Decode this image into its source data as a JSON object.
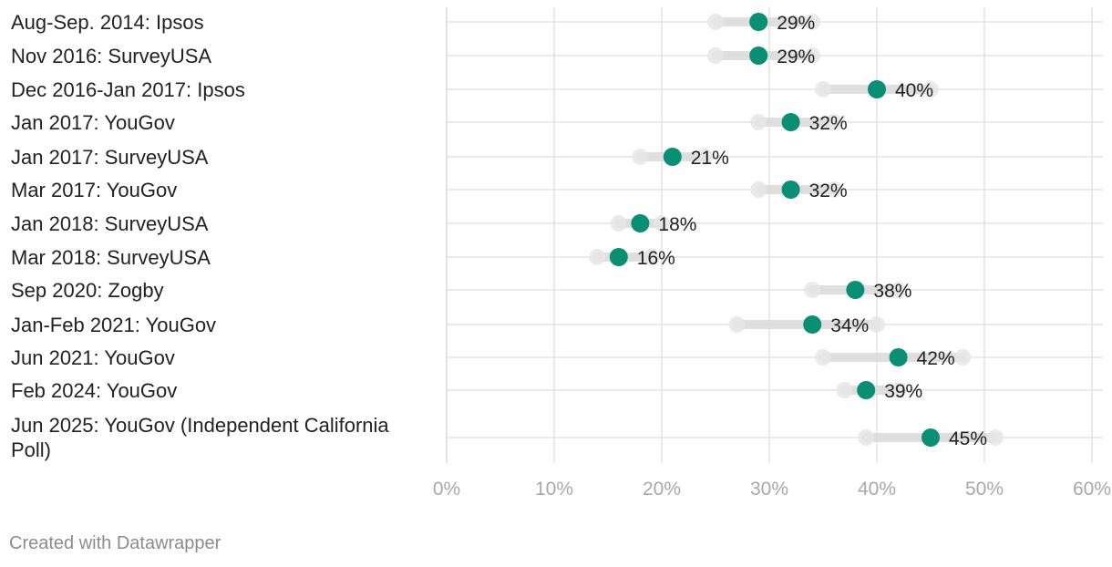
{
  "chart_data": {
    "type": "range-dot",
    "categories": [
      [
        "Aug-Sep. 2014: Ipsos"
      ],
      [
        "Nov 2016: SurveyUSA"
      ],
      [
        "Dec 2016-Jan 2017: Ipsos"
      ],
      [
        "Jan 2017: YouGov"
      ],
      [
        "Jan 2017: SurveyUSA"
      ],
      [
        "Mar 2017: YouGov"
      ],
      [
        "Jan 2018: SurveyUSA"
      ],
      [
        "Mar 2018: SurveyUSA"
      ],
      [
        "Sep 2020: Zogby"
      ],
      [
        "Jan-Feb 2021: YouGov"
      ],
      [
        "Jun 2021: YouGov"
      ],
      [
        "Feb 2024: YouGov"
      ],
      [
        "Jun 2025: YouGov (Independent California",
        "Poll)"
      ]
    ],
    "values": [
      29,
      29,
      40,
      32,
      21,
      32,
      18,
      16,
      38,
      34,
      42,
      39,
      45
    ],
    "value_labels": [
      "29%",
      "29%",
      "40%",
      "32%",
      "21%",
      "32%",
      "18%",
      "16%",
      "38%",
      "34%",
      "42%",
      "39%",
      "45%"
    ],
    "range_low": [
      25,
      25,
      35,
      29,
      18,
      29,
      16,
      14,
      34,
      27,
      35,
      37,
      39
    ],
    "range_high": [
      34,
      34,
      45,
      36,
      24,
      36,
      20,
      19,
      42,
      40,
      48,
      42,
      51
    ],
    "xlim": [
      0,
      60
    ],
    "xticks": [
      0,
      10,
      20,
      30,
      40,
      50,
      60
    ],
    "xtick_labels": [
      "0%",
      "10%",
      "20%",
      "30%",
      "40%",
      "50%",
      "60%"
    ],
    "grid": true,
    "colors": {
      "dot": "#0b8f74",
      "range": "#dcdcdc",
      "grid": "#e3e3e3"
    }
  },
  "footer": {
    "credit": "Created with Datawrapper"
  }
}
